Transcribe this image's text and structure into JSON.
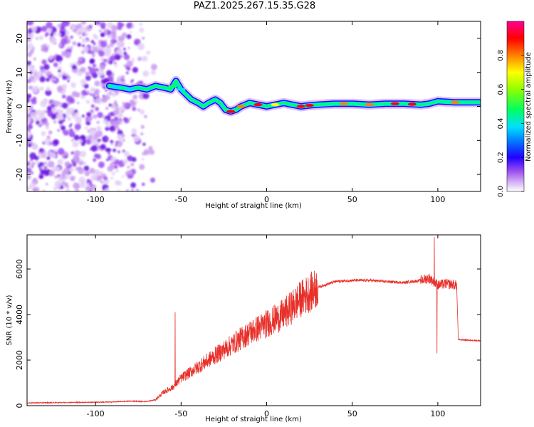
{
  "title": "PAZ1.2025.267.15.35.G28",
  "colors": {
    "snr_line": "#e8302a",
    "axes": "#000000",
    "spectrum_scale": [
      "#ffffff",
      "#c89af0",
      "#8a2be2",
      "#0000ff",
      "#00e5ff",
      "#00ff66",
      "#7cff00",
      "#ffff00",
      "#ff8000",
      "#ff0000",
      "#ff00a0"
    ]
  },
  "chart_data": [
    {
      "type": "heatmap",
      "name": "spectrogram",
      "xlabel": "Height of straight line (km)",
      "ylabel": "Frequency (Hz)",
      "xlim": [
        -140,
        125
      ],
      "ylim": [
        -25,
        25
      ],
      "xticks": [
        -100,
        -50,
        0,
        50,
        100
      ],
      "yticks": [
        -20,
        -10,
        0,
        10,
        20
      ],
      "colorbar": {
        "label": "Normalized spectral amplitude",
        "range": [
          0,
          1
        ],
        "ticks": [
          "0.0",
          "0.2",
          "0.4",
          "0.6",
          "0.8"
        ]
      },
      "ridge": {
        "description": "peak frequency vs height",
        "x": [
          -92,
          -85,
          -80,
          -75,
          -70,
          -65,
          -60,
          -56,
          -53,
          -50,
          -47,
          -44,
          -40,
          -37,
          -34,
          -30,
          -27,
          -24,
          -21,
          -18,
          -15,
          -10,
          -5,
          0,
          5,
          10,
          15,
          20,
          25,
          30,
          40,
          50,
          60,
          70,
          80,
          90,
          95,
          100,
          110,
          125
        ],
        "y": [
          6,
          5.5,
          5,
          5.5,
          5,
          6,
          5.5,
          5,
          7.5,
          5,
          3.5,
          2,
          1,
          0,
          1,
          2,
          1,
          -1,
          -1.5,
          -1,
          0,
          1,
          0.5,
          0,
          0.5,
          1,
          0.5,
          0,
          0.3,
          0.5,
          0.8,
          0.8,
          0.5,
          0.8,
          0.8,
          0.5,
          0.8,
          1.5,
          1.2,
          1.2
        ]
      }
    },
    {
      "type": "line",
      "name": "snr",
      "xlabel": "Height of straight line (km)",
      "ylabel": "SNR (10 * v/v)",
      "xlim": [
        -140,
        125
      ],
      "ylim": [
        0,
        7500
      ],
      "xticks": [
        -100,
        -50,
        0,
        50,
        100
      ],
      "yticks": [
        0,
        2000,
        4000,
        6000
      ],
      "envelope": {
        "x": [
          -140,
          -90,
          -80,
          -70,
          -65,
          -60,
          -55,
          -50,
          -40,
          -30,
          -20,
          -10,
          0,
          10,
          20,
          30,
          40,
          50,
          60,
          70,
          80,
          90,
          95,
          100,
          105,
          111,
          112,
          125
        ],
        "y": [
          120,
          160,
          200,
          180,
          260,
          600,
          800,
          1200,
          1700,
          2200,
          2700,
          3200,
          3600,
          4000,
          4700,
          5200,
          5450,
          5500,
          5500,
          5450,
          5400,
          5500,
          5600,
          5300,
          5350,
          5300,
          2900,
          2850
        ]
      },
      "spikes": [
        {
          "x": -53.5,
          "y": 4100
        },
        {
          "x": -55,
          "y": 900
        },
        {
          "x": 98,
          "y": 7400
        },
        {
          "x": 99.5,
          "y": 2300
        }
      ]
    }
  ]
}
